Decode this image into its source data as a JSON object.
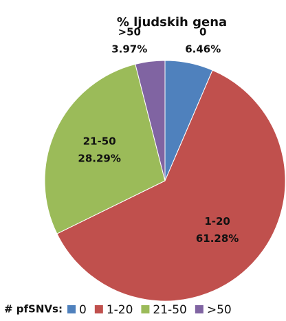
{
  "chart_data": {
    "type": "pie",
    "title": "% ljudskih gena",
    "categories": [
      "0",
      "1-20",
      "21-50",
      ">50"
    ],
    "values": [
      6.46,
      61.28,
      28.29,
      3.97
    ],
    "value_labels": [
      "6.46%",
      "61.28%",
      "28.29%",
      "3.97%"
    ],
    "colors": [
      "#4f81bd",
      "#c0504d",
      "#9bbb59",
      "#8064a2"
    ],
    "legend_title": "# pfSNVs:",
    "legend": "bottom"
  }
}
